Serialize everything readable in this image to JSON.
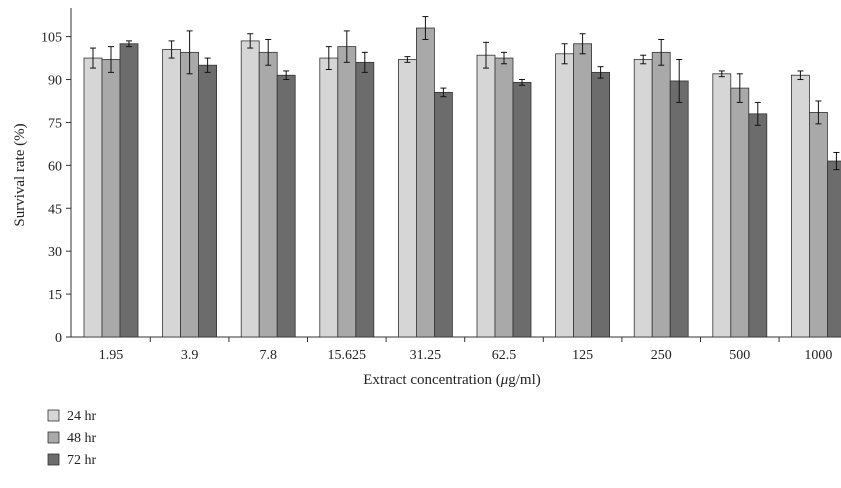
{
  "chart_data": {
    "type": "bar",
    "title": "",
    "xlabel_prefix": "Extract concentration (",
    "xlabel_unit_symbol": "μ",
    "xlabel_suffix": "g/ml)",
    "ylabel": "Survival rate (%)",
    "ylim": [
      0,
      115
    ],
    "yticks": [
      0,
      15,
      30,
      45,
      60,
      75,
      90,
      105
    ],
    "grid": false,
    "legend_position": "bottom-left",
    "categories": [
      "1.95",
      "3.9",
      "7.8",
      "15.625",
      "31.25",
      "62.5",
      "125",
      "250",
      "500",
      "1000"
    ],
    "series": [
      {
        "name": "24 hr",
        "color": "#d6d6d6",
        "values": [
          97.5,
          100.5,
          103.5,
          97.5,
          97,
          98.5,
          99,
          97,
          92,
          91.5
        ],
        "errors": [
          3.5,
          3,
          2.5,
          4,
          1,
          4.5,
          3.5,
          1.5,
          1,
          1.5
        ]
      },
      {
        "name": "48 hr",
        "color": "#a9a9a9",
        "values": [
          97,
          99.5,
          99.5,
          101.5,
          108,
          97.5,
          102.5,
          99.5,
          87,
          78.5
        ],
        "errors": [
          4.5,
          7.5,
          4.5,
          5.5,
          4,
          2,
          3.5,
          4.5,
          5,
          4
        ]
      },
      {
        "name": "72 hr",
        "color": "#6c6c6c",
        "values": [
          102.5,
          95,
          91.5,
          96,
          85.5,
          89,
          92.5,
          89.5,
          78,
          61.5
        ],
        "errors": [
          1,
          2.5,
          1.5,
          3.5,
          1.5,
          1,
          2,
          7.5,
          4,
          3
        ]
      }
    ]
  }
}
